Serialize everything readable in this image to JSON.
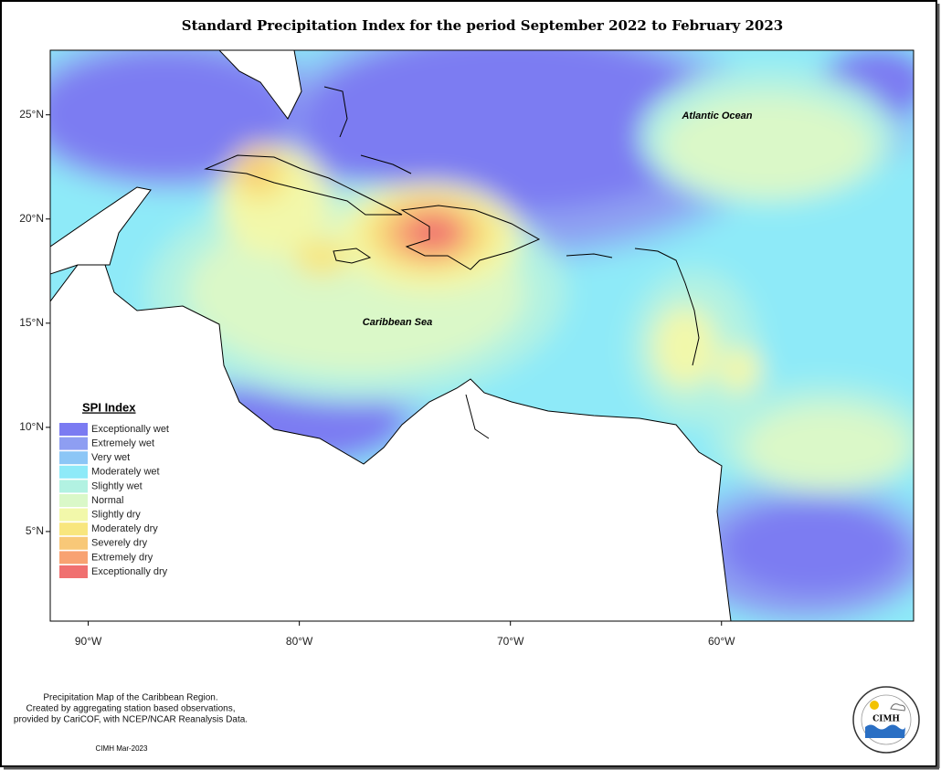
{
  "title": "Standard Precipitation Index for the period September 2022 to February 2023",
  "map": {
    "xlim": [
      -91.8,
      -50.9
    ],
    "ylim": [
      0.7,
      28.1
    ],
    "xticks": [
      {
        "value": -90,
        "label": "90°W"
      },
      {
        "value": -80,
        "label": "80°W"
      },
      {
        "value": -70,
        "label": "70°W"
      },
      {
        "value": -60,
        "label": "60°W"
      }
    ],
    "yticks": [
      {
        "value": 25,
        "label": "25°N"
      },
      {
        "value": 20,
        "label": "20°N"
      },
      {
        "value": 15,
        "label": "15°N"
      },
      {
        "value": 10,
        "label": "10°N"
      },
      {
        "value": 5,
        "label": "5°N"
      }
    ],
    "labels": [
      "Atlantic Ocean",
      "Caribbean Sea"
    ]
  },
  "legend": {
    "title": "SPI Index",
    "items": [
      {
        "label": "Exceptionally wet",
        "color": "#7b7bf2"
      },
      {
        "label": "Extremely wet",
        "color": "#8e9ef2"
      },
      {
        "label": "Very wet",
        "color": "#8cc6f6"
      },
      {
        "label": "Moderately wet",
        "color": "#8eeaf8"
      },
      {
        "label": "Slightly wet",
        "color": "#b2f2e2"
      },
      {
        "label": "Normal",
        "color": "#daf8c8"
      },
      {
        "label": "Slightly dry",
        "color": "#f2f8aa"
      },
      {
        "label": "Moderately dry",
        "color": "#f8e67e"
      },
      {
        "label": "Severely dry",
        "color": "#f8c878"
      },
      {
        "label": "Extremely dry",
        "color": "#f8a272"
      },
      {
        "label": "Exceptionally dry",
        "color": "#f07070"
      }
    ]
  },
  "notes": [
    "Precipitation Map of the Caribbean Region.",
    "Created by aggregating station based observations,",
    "provided by CariCOF, with NCEP/NCAR Reanalysis Data."
  ],
  "credit": "CIMH Mar-2023",
  "logo": "CIMH"
}
